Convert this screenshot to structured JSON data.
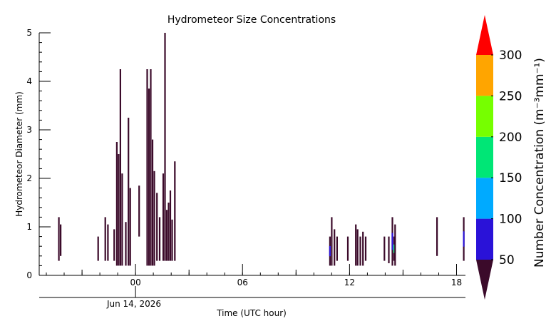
{
  "chart_data": {
    "type": "heatmap",
    "title": "Hydrometeor Size Concentrations",
    "xlabel": "Time (UTC hour)",
    "ylabel": "Hydrometeor Diameter (mm)",
    "date_label": "Jun 14, 2026",
    "xlim": [
      -5.4,
      18.5
    ],
    "ylim": [
      0,
      5
    ],
    "x_ticks": [
      {
        "value": 0,
        "label": "00"
      },
      {
        "value": 6,
        "label": "06"
      },
      {
        "value": 12,
        "label": "12"
      },
      {
        "value": 18,
        "label": "18"
      }
    ],
    "y_ticks": [
      {
        "value": 0,
        "label": "0"
      },
      {
        "value": 1,
        "label": "1"
      },
      {
        "value": 2,
        "label": "2"
      },
      {
        "value": 3,
        "label": "3"
      },
      {
        "value": 4,
        "label": "4"
      },
      {
        "value": 5,
        "label": "5"
      }
    ],
    "colorbar": {
      "label": "Number Concentration (m⁻³mm⁻¹)",
      "ticks": [
        "50",
        "100",
        "150",
        "200",
        "250",
        "300"
      ],
      "bounds": [
        50,
        100,
        150,
        200,
        250,
        300
      ],
      "colors": [
        "#3b0a2a",
        "#2a12d8",
        "#00aaff",
        "#00e676",
        "#76ff00",
        "#ffa500",
        "#ff0000"
      ],
      "extend": "both"
    },
    "series": [
      {
        "x": -4.3,
        "ymin": 0.3,
        "ymax": 1.2,
        "level": 0
      },
      {
        "x": -4.2,
        "ymin": 0.4,
        "ymax": 1.05,
        "level": 0
      },
      {
        "x": -2.1,
        "ymin": 0.3,
        "ymax": 0.8,
        "level": 0
      },
      {
        "x": -1.7,
        "ymin": 0.3,
        "ymax": 1.2,
        "level": 0
      },
      {
        "x": -1.55,
        "ymin": 0.3,
        "ymax": 1.05,
        "level": 0
      },
      {
        "x": -1.2,
        "ymin": 0.3,
        "ymax": 0.95,
        "level": 0
      },
      {
        "x": -1.05,
        "ymin": 0.2,
        "ymax": 2.75,
        "level": 0
      },
      {
        "x": -0.95,
        "ymin": 0.2,
        "ymax": 2.5,
        "level": 0
      },
      {
        "x": -0.85,
        "ymin": 0.2,
        "ymax": 4.25,
        "level": 0
      },
      {
        "x": -0.75,
        "ymin": 0.2,
        "ymax": 2.1,
        "level": 0
      },
      {
        "x": -0.55,
        "ymin": 0.2,
        "ymax": 1.1,
        "level": 0
      },
      {
        "x": -0.4,
        "ymin": 0.2,
        "ymax": 3.25,
        "level": 0
      },
      {
        "x": -0.3,
        "ymin": 0.2,
        "ymax": 1.8,
        "level": 0
      },
      {
        "x": 0.2,
        "ymin": 0.8,
        "ymax": 1.85,
        "level": 0
      },
      {
        "x": 0.65,
        "ymin": 0.2,
        "ymax": 4.25,
        "level": 0
      },
      {
        "x": 0.75,
        "ymin": 0.2,
        "ymax": 3.85,
        "level": 0
      },
      {
        "x": 0.85,
        "ymin": 0.2,
        "ymax": 4.25,
        "level": 0
      },
      {
        "x": 0.95,
        "ymin": 0.2,
        "ymax": 2.8,
        "level": 0
      },
      {
        "x": 1.05,
        "ymin": 0.2,
        "ymax": 2.15,
        "level": 0
      },
      {
        "x": 1.2,
        "ymin": 0.3,
        "ymax": 1.7,
        "level": 0
      },
      {
        "x": 1.35,
        "ymin": 0.3,
        "ymax": 1.2,
        "level": 0
      },
      {
        "x": 1.55,
        "ymin": 0.3,
        "ymax": 2.1,
        "level": 0
      },
      {
        "x": 1.65,
        "ymin": 0.3,
        "ymax": 5.0,
        "level": 0
      },
      {
        "x": 1.75,
        "ymin": 0.3,
        "ymax": 1.35,
        "level": 0
      },
      {
        "x": 1.85,
        "ymin": 0.3,
        "ymax": 1.5,
        "level": 0
      },
      {
        "x": 1.95,
        "ymin": 0.3,
        "ymax": 1.75,
        "level": 0
      },
      {
        "x": 2.05,
        "ymin": 0.3,
        "ymax": 1.15,
        "level": 0
      },
      {
        "x": 2.2,
        "ymin": 0.3,
        "ymax": 2.35,
        "level": 0
      },
      {
        "x": 10.9,
        "ymin": 0.2,
        "ymax": 0.8,
        "level": 1
      },
      {
        "x": 11.0,
        "ymin": 0.2,
        "ymax": 1.2,
        "level": 0
      },
      {
        "x": 11.15,
        "ymin": 0.2,
        "ymax": 0.95,
        "level": 0
      },
      {
        "x": 11.3,
        "ymin": 0.3,
        "ymax": 0.8,
        "level": 0
      },
      {
        "x": 11.9,
        "ymin": 0.3,
        "ymax": 0.8,
        "level": 0
      },
      {
        "x": 12.35,
        "ymin": 0.2,
        "ymax": 1.05,
        "level": 0
      },
      {
        "x": 12.45,
        "ymin": 0.2,
        "ymax": 0.95,
        "level": 0
      },
      {
        "x": 12.6,
        "ymin": 0.2,
        "ymax": 0.8,
        "level": 0
      },
      {
        "x": 12.75,
        "ymin": 0.2,
        "ymax": 0.9,
        "level": 0
      },
      {
        "x": 12.9,
        "ymin": 0.3,
        "ymax": 0.8,
        "level": 0
      },
      {
        "x": 13.95,
        "ymin": 0.3,
        "ymax": 0.8,
        "level": 0
      },
      {
        "x": 14.2,
        "ymin": 0.25,
        "ymax": 0.8,
        "level": 0
      },
      {
        "x": 14.4,
        "ymin": 0.2,
        "ymax": 1.2,
        "level": 1
      },
      {
        "x": 14.5,
        "ymin": 0.3,
        "ymax": 0.8,
        "level": 3
      },
      {
        "x": 14.55,
        "ymin": 0.2,
        "ymax": 1.05,
        "level": 0
      },
      {
        "x": 16.9,
        "ymin": 0.4,
        "ymax": 1.2,
        "level": 0
      },
      {
        "x": 18.4,
        "ymin": 0.3,
        "ymax": 1.2,
        "level": 1
      }
    ]
  }
}
